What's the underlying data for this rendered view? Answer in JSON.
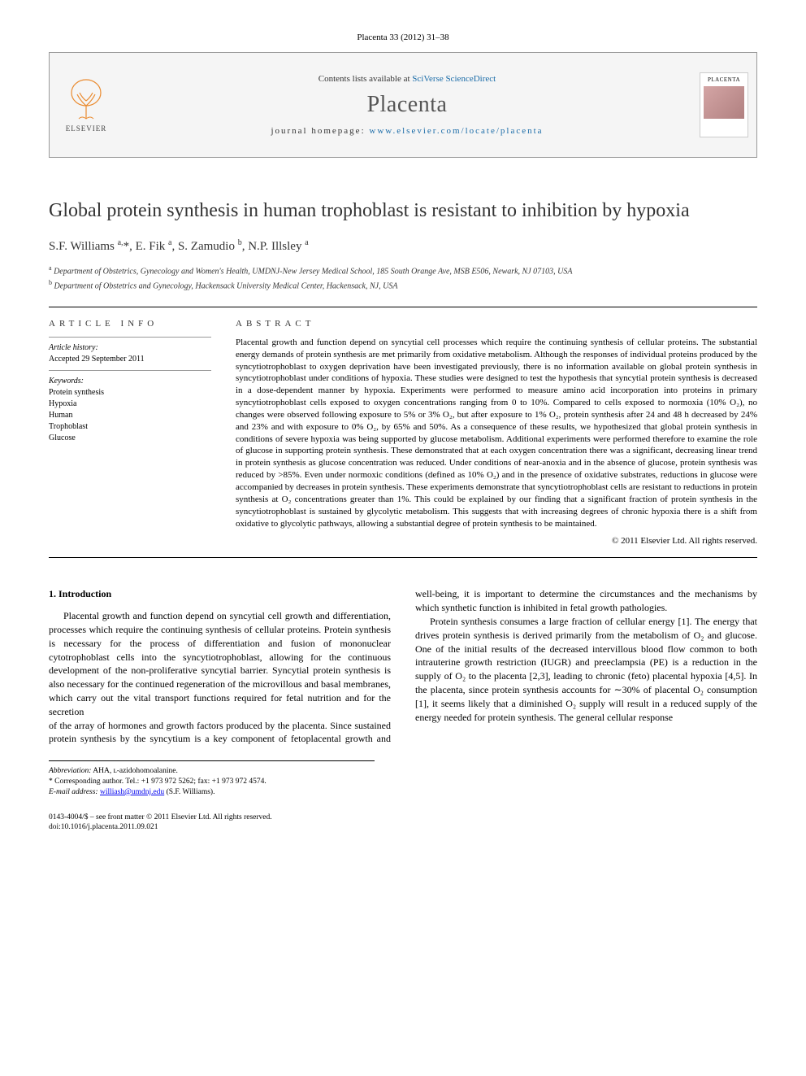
{
  "citation": "Placenta 33 (2012) 31–38",
  "masthead": {
    "contents_prefix": "Contents lists available at ",
    "contents_link": "SciVerse ScienceDirect",
    "journal": "Placenta",
    "homepage_prefix": "journal homepage: ",
    "homepage_url": "www.elsevier.com/locate/placenta",
    "publisher": "ELSEVIER",
    "cover_label": "PLACENTA"
  },
  "article": {
    "title": "Global protein synthesis in human trophoblast is resistant to inhibition by hypoxia",
    "authors_html": "S.F. Williams <sup>a,</sup>*, E. Fik <sup>a</sup>, S. Zamudio <sup>b</sup>, N.P. Illsley <sup>a</sup>",
    "affiliations": {
      "a": "Department of Obstetrics, Gynecology and Women's Health, UMDNJ-New Jersey Medical School, 185 South Orange Ave, MSB E506, Newark, NJ 07103, USA",
      "b": "Department of Obstetrics and Gynecology, Hackensack University Medical Center, Hackensack, NJ, USA"
    }
  },
  "info": {
    "heading": "ARTICLE INFO",
    "history_label": "Article history:",
    "history_text": "Accepted 29 September 2011",
    "keywords_label": "Keywords:",
    "keywords": [
      "Protein synthesis",
      "Hypoxia",
      "Human",
      "Trophoblast",
      "Glucose"
    ]
  },
  "abstract": {
    "heading": "ABSTRACT",
    "text": "Placental growth and function depend on syncytial cell processes which require the continuing synthesis of cellular proteins. The substantial energy demands of protein synthesis are met primarily from oxidative metabolism. Although the responses of individual proteins produced by the syncytiotrophoblast to oxygen deprivation have been investigated previously, there is no information available on global protein synthesis in syncytiotrophoblast under conditions of hypoxia. These studies were designed to test the hypothesis that syncytial protein synthesis is decreased in a dose-dependent manner by hypoxia. Experiments were performed to measure amino acid incorporation into proteins in primary syncytiotrophoblast cells exposed to oxygen concentrations ranging from 0 to 10%. Compared to cells exposed to normoxia (10% O₂), no changes were observed following exposure to 5% or 3% O₂, but after exposure to 1% O₂, protein synthesis after 24 and 48 h decreased by 24% and 23% and with exposure to 0% O₂, by 65% and 50%. As a consequence of these results, we hypothesized that global protein synthesis in conditions of severe hypoxia was being supported by glucose metabolism. Additional experiments were performed therefore to examine the role of glucose in supporting protein synthesis. These demonstrated that at each oxygen concentration there was a significant, decreasing linear trend in protein synthesis as glucose concentration was reduced. Under conditions of near-anoxia and in the absence of glucose, protein synthesis was reduced by >85%. Even under normoxic conditions (defined as 10% O₂) and in the presence of oxidative substrates, reductions in glucose were accompanied by decreases in protein synthesis. These experiments demonstrate that syncytiotrophoblast cells are resistant to reductions in protein synthesis at O₂ concentrations greater than 1%. This could be explained by our finding that a significant fraction of protein synthesis in the syncytiotrophoblast is sustained by glycolytic metabolism. This suggests that with increasing degrees of chronic hypoxia there is a shift from oxidative to glycolytic pathways, allowing a substantial degree of protein synthesis to be maintained.",
    "copyright": "© 2011 Elsevier Ltd. All rights reserved."
  },
  "body": {
    "section_number": "1.",
    "section_title": "Introduction",
    "para1": "Placental growth and function depend on syncytial cell growth and differentiation, processes which require the continuing synthesis of cellular proteins. Protein synthesis is necessary for the process of differentiation and fusion of mononuclear cytotrophoblast cells into the syncytiotrophoblast, allowing for the continuous development of the non-proliferative syncytial barrier. Syncytial protein synthesis is also necessary for the continued regeneration of the microvillous and basal membranes, which carry out the vital transport functions required for fetal nutrition and for the secretion",
    "para2": "of the array of hormones and growth factors produced by the placenta. Since sustained protein synthesis by the syncytium is a key component of fetoplacental growth and well-being, it is important to determine the circumstances and the mechanisms by which synthetic function is inhibited in fetal growth pathologies.",
    "para3": "Protein synthesis consumes a large fraction of cellular energy [1]. The energy that drives protein synthesis is derived primarily from the metabolism of O₂ and glucose. One of the initial results of the decreased intervillous blood flow common to both intrauterine growth restriction (IUGR) and preeclampsia (PE) is a reduction in the supply of O₂ to the placenta [2,3], leading to chronic (feto) placental hypoxia [4,5]. In the placenta, since protein synthesis accounts for ∼30% of placental O₂ consumption [1], it seems likely that a diminished O₂ supply will result in a reduced supply of the energy needed for protein synthesis. The general cellular response"
  },
  "footnotes": {
    "abbrev_label": "Abbreviation:",
    "abbrev_text": "AHA, ʟ-azidohomoalanine.",
    "corr_label": "* Corresponding author.",
    "corr_text": "Tel.: +1 973 972 5262; fax: +1 973 972 4574.",
    "email_label": "E-mail address:",
    "email": "williash@umdnj.edu",
    "email_suffix": "(S.F. Williams)."
  },
  "footer": {
    "line1": "0143-4004/$ – see front matter © 2011 Elsevier Ltd. All rights reserved.",
    "line2": "doi:10.1016/j.placenta.2011.09.021"
  },
  "colors": {
    "link": "#1b6ca8",
    "text": "#000000",
    "mast_bg": "#f5f5f5",
    "rule": "#000000"
  }
}
